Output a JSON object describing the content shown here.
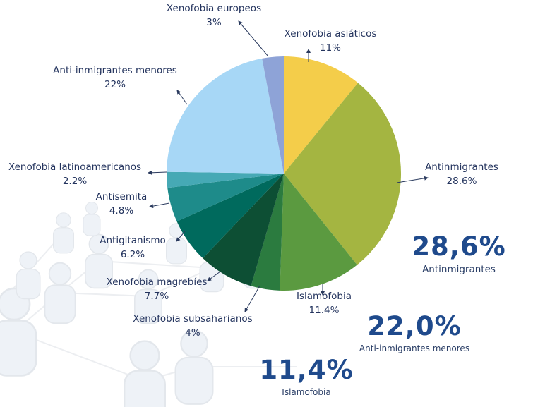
{
  "chart_data": {
    "type": "pie",
    "slices": [
      {
        "label": "Xenofobia asiáticos",
        "value": 11,
        "value_label": "11%",
        "color": "#f4cd4a"
      },
      {
        "label": "Antinmigrantes",
        "value": 28.6,
        "value_label": "28.6%",
        "color": "#a4b541"
      },
      {
        "label": "Islamofobia",
        "value": 11.4,
        "value_label": "11.4%",
        "color": "#5b9a40"
      },
      {
        "label": "Xenofobia subsaharianos",
        "value": 4,
        "value_label": "4%",
        "color": "#2b7b3f"
      },
      {
        "label": "Xenofobia magrebíes",
        "value": 7.7,
        "value_label": "7.7%",
        "color": "#0d4f34"
      },
      {
        "label": "Antigitanismo",
        "value": 6.2,
        "value_label": "6.2%",
        "color": "#006a5d"
      },
      {
        "label": "Antisemita",
        "value": 4.8,
        "value_label": "4.8%",
        "color": "#1e8b8a"
      },
      {
        "label": "Xenofobia latinoamericanos",
        "value": 2.2,
        "value_label": "2.2%",
        "color": "#46a9b5"
      },
      {
        "label": "Anti-inmigrantes menores",
        "value": 22,
        "value_label": "22%",
        "color": "#a7d7f6"
      },
      {
        "label": "Xenofobia europeos",
        "value": 3,
        "value_label": "3%",
        "color": "#8ea3d7"
      }
    ],
    "start": "top",
    "direction": "clockwise"
  },
  "highlights": [
    {
      "value": "28,6%",
      "label": "Antinmigrantes"
    },
    {
      "value": "22,0%",
      "label": "Anti-inmigrantes menores"
    },
    {
      "value": "11,4%",
      "label": "Islamofobia"
    }
  ],
  "colors": {
    "text": "#24345e",
    "highlight": "#1f4a8c",
    "background_figures": "#eef2f7"
  }
}
